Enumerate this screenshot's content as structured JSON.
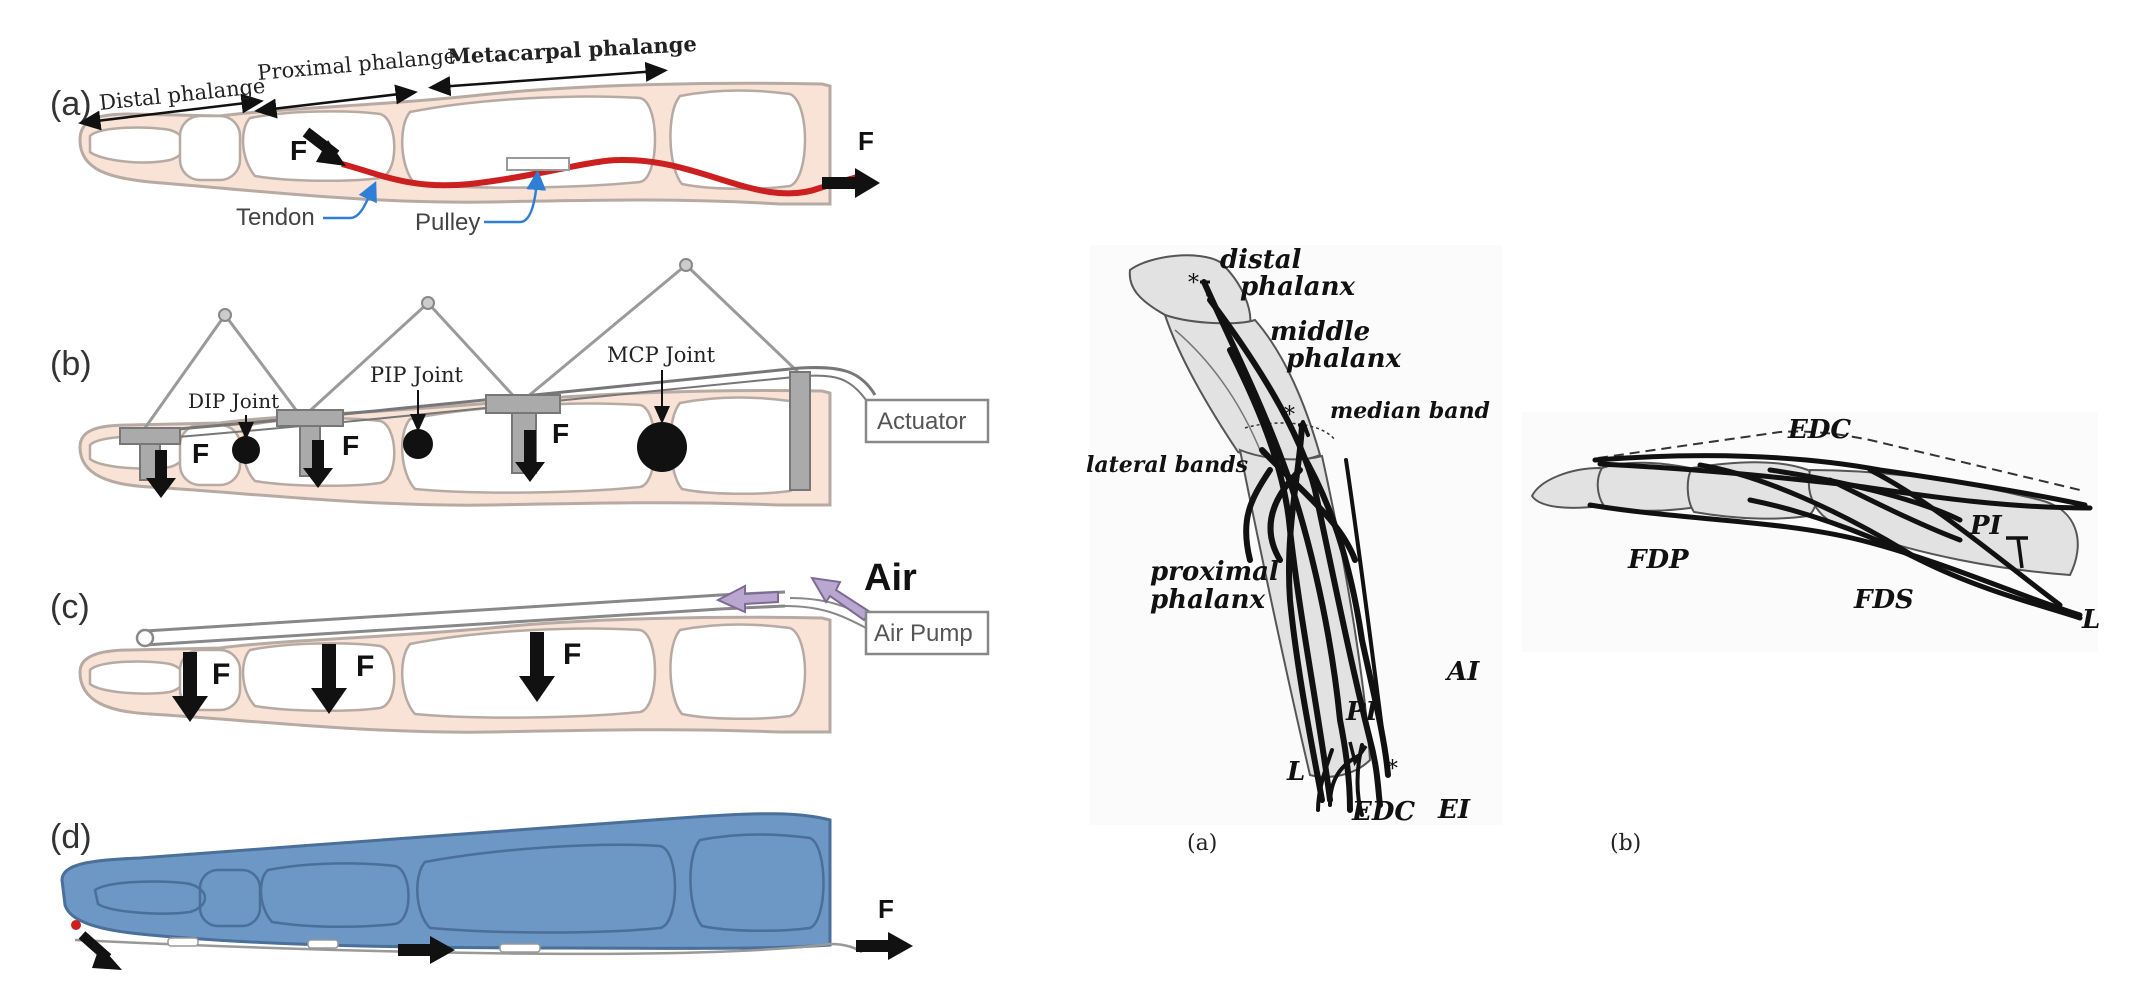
{
  "colors": {
    "skin": "#f8e3d6",
    "bone_stroke": "#b7aaa3",
    "tendon": "#cc1f1f",
    "glove": "#6d97c4",
    "glove_stroke": "#4a6f98",
    "bone_gray": "#e2e2e2",
    "arrow": "#111111",
    "leader_blue": "#2f7fd6",
    "air_arrow": "#b9a7cf"
  },
  "left_panel": {
    "a": {
      "letter": "(a)",
      "distal_label": "Distal phalange",
      "proximal_label": "Proximal phalange",
      "metacarpal_label": "Metacarpal phalange",
      "force_inner": "F",
      "force_outer": "F",
      "tendon_label": "Tendon",
      "pulley_label": "Pulley"
    },
    "b": {
      "letter": "(b)",
      "dip_label": "DIP Joint",
      "pip_label": "PIP Joint",
      "mcp_label": "MCP Joint",
      "actuator_label": "Actuator",
      "force_labels": [
        "F",
        "F",
        "F"
      ]
    },
    "c": {
      "letter": "(c)",
      "air_label": "Air",
      "pump_label": "Air Pump",
      "force_labels": [
        "F",
        "F",
        "F"
      ]
    },
    "d": {
      "letter": "(d)",
      "force_label": "F"
    }
  },
  "right_panel": {
    "a": {
      "caption": "(a)",
      "distal": [
        "distal",
        "phalanx"
      ],
      "middle": [
        "middle",
        "phalanx"
      ],
      "median_band": "median band",
      "lateral_bands": "lateral bands",
      "proximal": [
        "proximal",
        "phalanx"
      ],
      "ai": "AI",
      "pi": "PI",
      "l": "L",
      "edc": "EDC",
      "ei": "EI",
      "asterisks": [
        "*",
        "*",
        "*"
      ]
    },
    "b": {
      "caption": "(b)",
      "edc": "EDC",
      "fdp": "FDP",
      "fds": "FDS",
      "pi": "PI",
      "l": "L"
    }
  }
}
